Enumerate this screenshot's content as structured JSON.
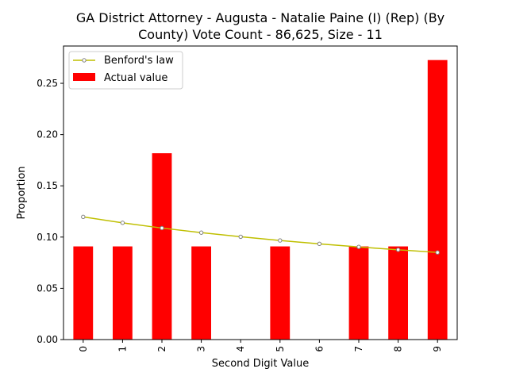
{
  "chart_data": {
    "type": "bar",
    "title_lines": [
      "GA District Attorney - Augusta - Natalie Paine (I) (Rep) (By",
      "County) Vote Count - 86,625, Size - 11"
    ],
    "xlabel": "Second Digit Value",
    "ylabel": "Proportion",
    "categories": [
      "0",
      "1",
      "2",
      "3",
      "4",
      "5",
      "6",
      "7",
      "8",
      "9"
    ],
    "ylim": [
      0,
      0.2864
    ],
    "yticks": [
      0.0,
      0.05,
      0.1,
      0.15,
      0.2,
      0.25
    ],
    "ytick_labels": [
      "0.00",
      "0.05",
      "0.10",
      "0.15",
      "0.20",
      "0.25"
    ],
    "grid": false,
    "legend_position": "top-left",
    "series": [
      {
        "name": "Actual value",
        "kind": "bar",
        "color": "#ff0000",
        "values": [
          0.0909,
          0.0909,
          0.1818,
          0.0909,
          0.0,
          0.0909,
          0.0,
          0.0909,
          0.0909,
          0.2727
        ]
      },
      {
        "name": "Benford's law",
        "kind": "line",
        "color": "#bfbf00",
        "marker_color": "#808080",
        "values": [
          0.1197,
          0.1139,
          0.1088,
          0.1043,
          0.1003,
          0.0967,
          0.0934,
          0.0904,
          0.0876,
          0.085
        ]
      }
    ]
  }
}
